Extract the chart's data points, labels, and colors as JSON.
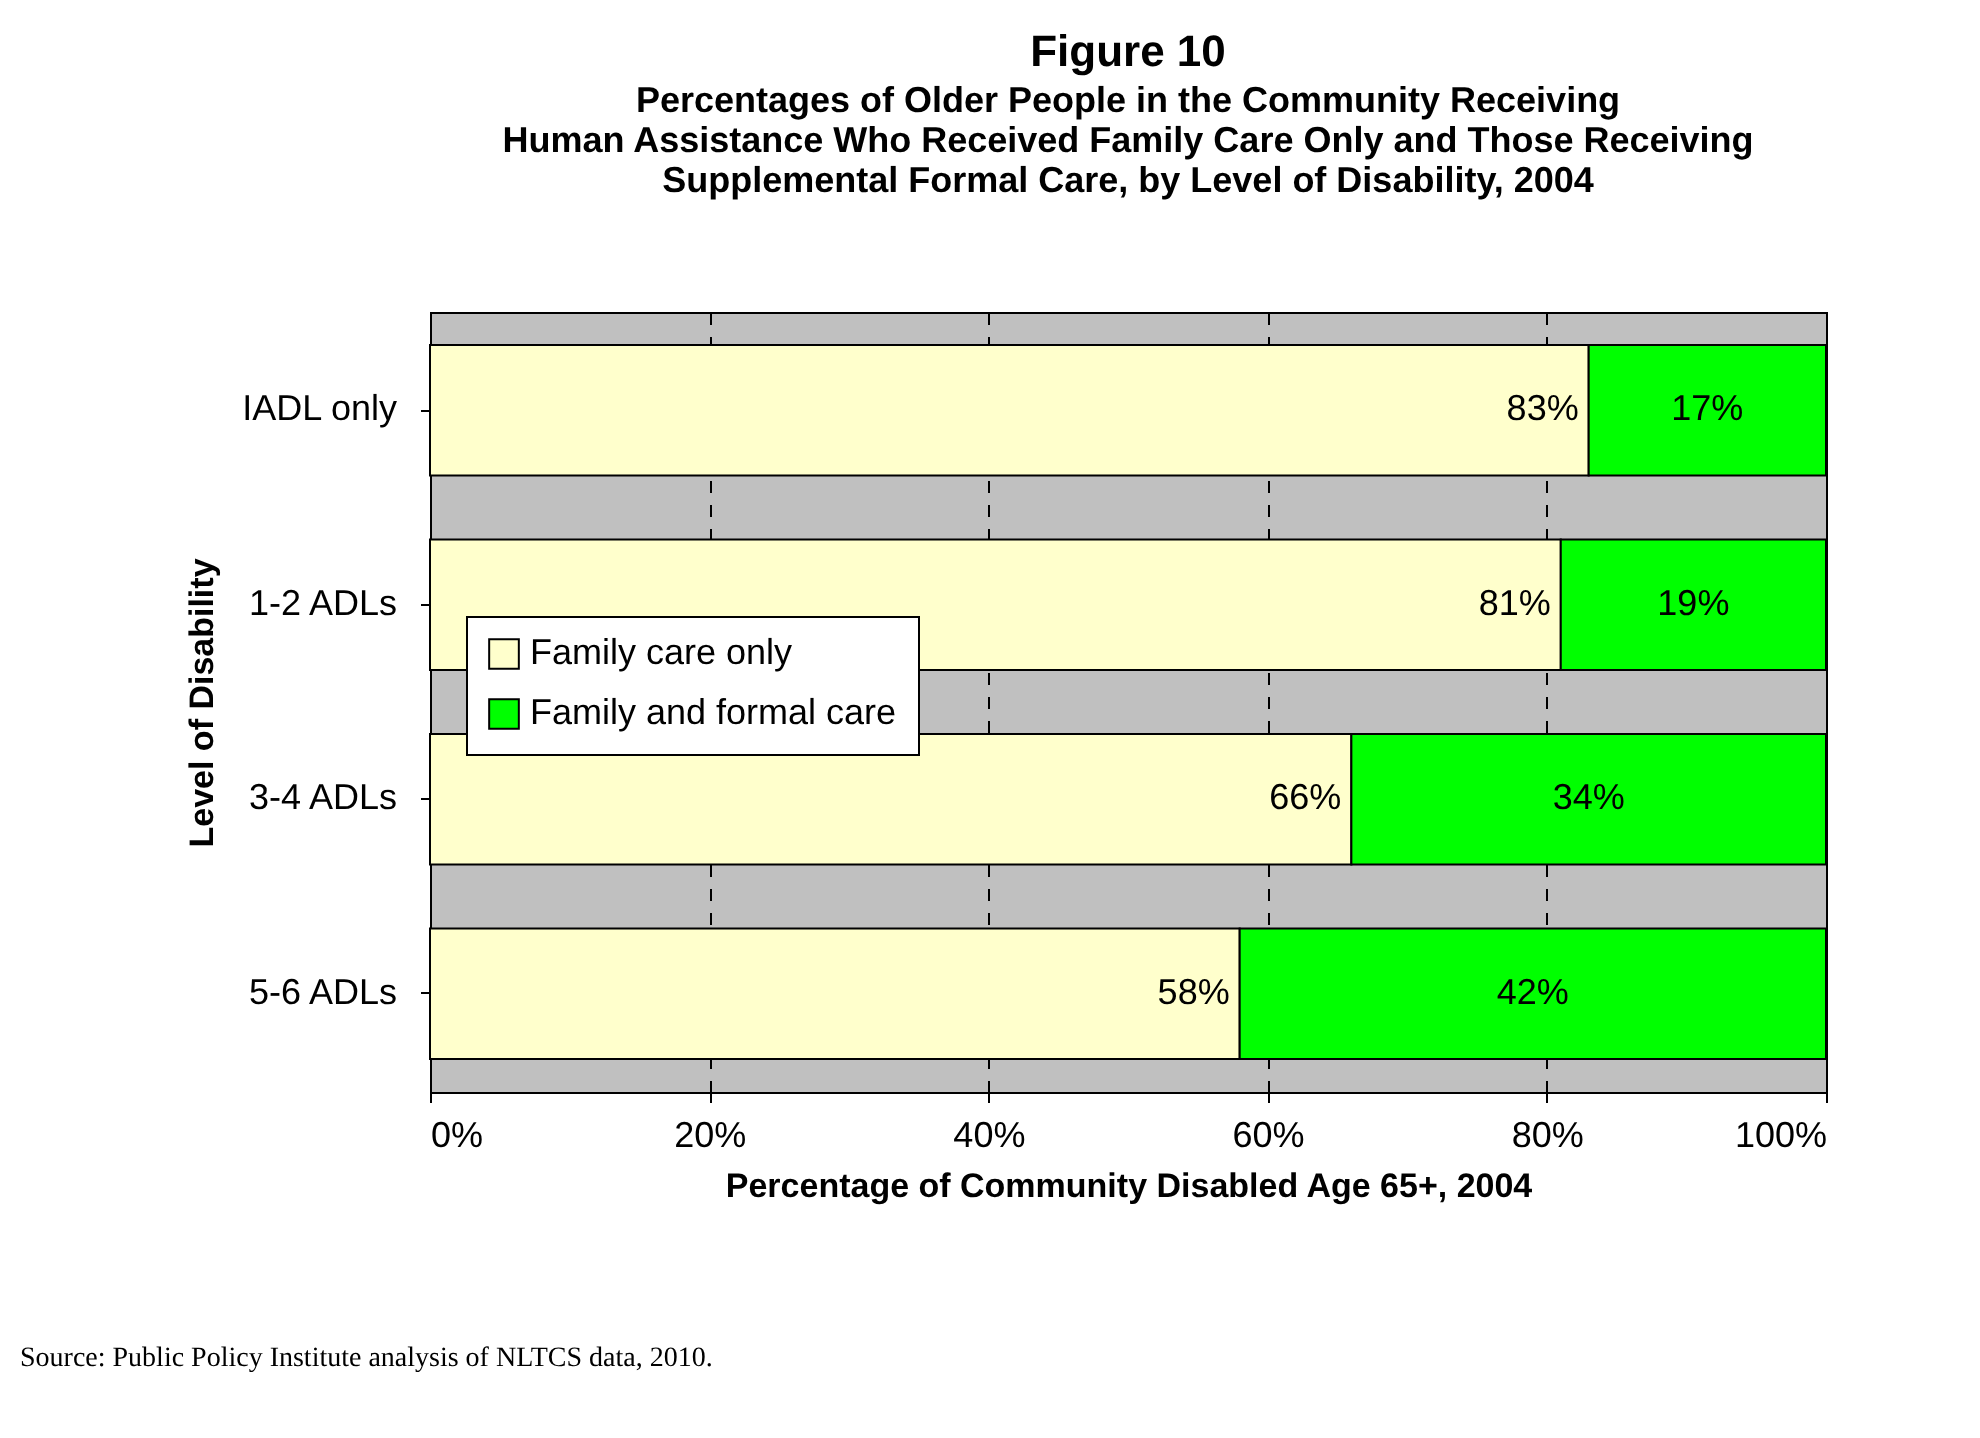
{
  "chart_data": {
    "type": "bar",
    "orientation": "horizontal",
    "stacked": true,
    "title": "Figure 10",
    "subtitle": [
      "Percentages of Older People in the Community Receiving",
      "Human Assistance Who Received Family Care Only and Those Receiving",
      "Supplemental Formal Care, by Level of Disability, 2004"
    ],
    "xlabel": "Percentage of Community Disabled Age 65+, 2004",
    "ylabel": "Level of Disability",
    "categories": [
      "IADL only",
      "1-2 ADLs",
      "3-4 ADLs",
      "5-6 ADLs"
    ],
    "series": [
      {
        "name": "Family care only",
        "color": "#ffffcc",
        "values": [
          83,
          81,
          66,
          58
        ],
        "value_labels": [
          "83%",
          "81%",
          "66%",
          "58%"
        ]
      },
      {
        "name": "Family and formal care",
        "color": "#00ff00",
        "values": [
          17,
          19,
          34,
          42
        ],
        "value_labels": [
          "17%",
          "19%",
          "34%",
          "42%"
        ]
      }
    ],
    "xlim": [
      0,
      100
    ],
    "xticks": [
      {
        "value": 0,
        "label": "0%"
      },
      {
        "value": 20,
        "label": "20%"
      },
      {
        "value": 40,
        "label": "40%"
      },
      {
        "value": 60,
        "label": "60%"
      },
      {
        "value": 80,
        "label": "80%"
      },
      {
        "value": 100,
        "label": "100%"
      }
    ],
    "grid": "x",
    "legend": "left",
    "annotations": [
      "Source: Public Policy Institute analysis of NLTCS data, 2010."
    ]
  }
}
